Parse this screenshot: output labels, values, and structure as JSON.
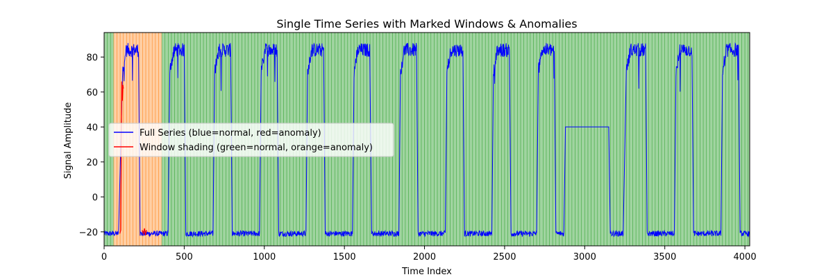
{
  "chart_data": {
    "type": "line",
    "title": "Single Time Series with Marked Windows & Anomalies",
    "xlabel": "Time Index",
    "ylabel": "Signal Amplitude",
    "xlim": [
      0,
      4030
    ],
    "ylim": [
      -28,
      94
    ],
    "x_ticks": [
      0,
      500,
      1000,
      1500,
      2000,
      2500,
      3000,
      3500,
      4000
    ],
    "y_ticks": [
      -20,
      0,
      20,
      40,
      60,
      80
    ],
    "grid": false,
    "legend_position": "center-left",
    "legend": [
      {
        "label": "Full Series (blue=normal, red=anomaly)",
        "color": "#0000ff"
      },
      {
        "label": "Window shading (green=normal, orange=anomaly)",
        "color": "#ff0000"
      }
    ],
    "series": [
      {
        "color": "#0000ff",
        "low_level": -21,
        "high_level": 84,
        "segments": [
          {
            "x": [
              0,
              90
            ],
            "level": "low"
          },
          {
            "x": [
              115,
              215
            ],
            "level": "high"
          },
          {
            "x": [
              225,
              400
            ],
            "level": "low"
          },
          {
            "x": [
              410,
              500
            ],
            "level": "high"
          },
          {
            "x": [
              510,
              680
            ],
            "level": "low"
          },
          {
            "x": [
              690,
              790
            ],
            "level": "high"
          },
          {
            "x": [
              800,
              970
            ],
            "level": "low"
          },
          {
            "x": [
              980,
              1080
            ],
            "level": "high"
          },
          {
            "x": [
              1090,
              1260
            ],
            "level": "low"
          },
          {
            "x": [
              1270,
              1370
            ],
            "level": "high"
          },
          {
            "x": [
              1380,
              1550
            ],
            "level": "low"
          },
          {
            "x": [
              1560,
              1660
            ],
            "level": "high"
          },
          {
            "x": [
              1670,
              1840
            ],
            "level": "low"
          },
          {
            "x": [
              1850,
              1950
            ],
            "level": "high"
          },
          {
            "x": [
              1960,
              2130
            ],
            "level": "low"
          },
          {
            "x": [
              2140,
              2240
            ],
            "level": "high"
          },
          {
            "x": [
              2250,
              2420
            ],
            "level": "low"
          },
          {
            "x": [
              2430,
              2530
            ],
            "level": "high"
          },
          {
            "x": [
              2540,
              2700
            ],
            "level": "low"
          },
          {
            "x": [
              2710,
              2810
            ],
            "level": "high"
          },
          {
            "x": [
              2820,
              2870
            ],
            "level": "low"
          },
          {
            "x": [
              2880,
              3150
            ],
            "value": 40
          },
          {
            "x": [
              3160,
              3240
            ],
            "level": "low"
          },
          {
            "x": [
              3260,
              3380
            ],
            "level": "high"
          },
          {
            "x": [
              3390,
              3560
            ],
            "level": "low"
          },
          {
            "x": [
              3570,
              3670
            ],
            "level": "high"
          },
          {
            "x": [
              3680,
              3850
            ],
            "level": "low"
          },
          {
            "x": [
              3860,
              3960
            ],
            "level": "high"
          },
          {
            "x": [
              3970,
              4030
            ],
            "level": "low"
          }
        ]
      },
      {
        "color": "#ff0000",
        "points": [
          [
            98,
            -21
          ],
          [
            104,
            -19
          ],
          [
            108,
            40
          ],
          [
            110,
            66
          ],
          [
            114,
            55
          ],
          [
            117,
            64
          ],
          [
            120,
            62
          ]
        ]
      },
      {
        "color": "#ff0000",
        "points": [
          [
            238,
            -19
          ],
          [
            245,
            -21
          ],
          [
            252,
            -18
          ],
          [
            258,
            -22
          ],
          [
            265,
            -19
          ]
        ]
      }
    ],
    "windows": {
      "step": 20,
      "normal_color": "#2ca02c",
      "anomaly_color": "#ff7f0e",
      "anomaly_ranges": [
        [
          60,
          360
        ]
      ]
    }
  }
}
